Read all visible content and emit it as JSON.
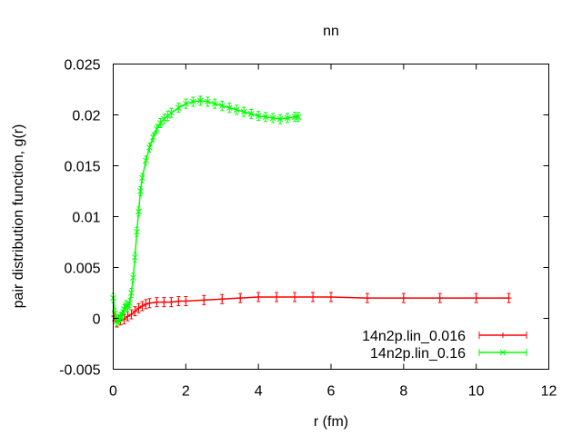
{
  "chart_data": {
    "type": "line",
    "title": "nn",
    "xlabel": "r (fm)",
    "ylabel": "pair distribution function, g(r)",
    "xlim": [
      0,
      12
    ],
    "ylim": [
      -0.005,
      0.025
    ],
    "xticks": [
      0,
      2,
      4,
      6,
      8,
      10,
      12
    ],
    "xtick_labels": [
      "0",
      "2",
      "4",
      "6",
      "8",
      "10",
      "12"
    ],
    "yticks": [
      -0.005,
      0,
      0.005,
      0.01,
      0.015,
      0.02,
      0.025
    ],
    "ytick_labels": [
      "-0.005",
      "0",
      "0.005",
      "0.01",
      "0.015",
      "0.02",
      "0.025"
    ],
    "grid": false,
    "legend_position": "bottom-right",
    "series": [
      {
        "name": "14n2p.lin_0.016",
        "color": "#ff0000",
        "marker": "plus",
        "error_bars": true,
        "x": [
          0.02,
          0.1,
          0.2,
          0.3,
          0.4,
          0.5,
          0.6,
          0.7,
          0.8,
          0.9,
          1.0,
          1.2,
          1.4,
          1.6,
          1.8,
          2.0,
          2.5,
          3.0,
          3.5,
          4.0,
          4.5,
          5.0,
          5.5,
          6.0,
          7.0,
          8.0,
          9.0,
          10.0,
          10.9
        ],
        "y": [
          0.0002,
          -0.0004,
          -0.0002,
          -0.0001,
          0.0002,
          0.0004,
          0.0007,
          0.001,
          0.0012,
          0.0014,
          0.0015,
          0.0016,
          0.0016,
          0.0016,
          0.0017,
          0.0017,
          0.0018,
          0.0019,
          0.002,
          0.0021,
          0.0021,
          0.0021,
          0.0021,
          0.0021,
          0.002,
          0.002,
          0.002,
          0.002,
          0.002
        ]
      },
      {
        "name": "14n2p.lin_0.16",
        "color": "#00ff00",
        "marker": "cross",
        "error_bars": true,
        "x": [
          0.0,
          0.05,
          0.1,
          0.15,
          0.2,
          0.25,
          0.3,
          0.35,
          0.4,
          0.45,
          0.5,
          0.55,
          0.6,
          0.65,
          0.7,
          0.75,
          0.8,
          0.9,
          1.0,
          1.1,
          1.2,
          1.3,
          1.4,
          1.5,
          1.6,
          1.8,
          2.0,
          2.2,
          2.4,
          2.6,
          2.8,
          3.0,
          3.2,
          3.4,
          3.6,
          3.8,
          4.0,
          4.2,
          4.4,
          4.6,
          4.8,
          5.0,
          5.1
        ],
        "y": [
          0.002,
          0.0005,
          -0.0003,
          -0.0001,
          0.0001,
          0.0004,
          0.0009,
          0.0013,
          0.0011,
          0.0015,
          0.0025,
          0.004,
          0.006,
          0.0085,
          0.0105,
          0.0125,
          0.0138,
          0.0155,
          0.0168,
          0.0178,
          0.0186,
          0.0192,
          0.0196,
          0.0199,
          0.0202,
          0.0207,
          0.0211,
          0.0213,
          0.0214,
          0.0213,
          0.0211,
          0.0209,
          0.0207,
          0.0205,
          0.0203,
          0.0201,
          0.0199,
          0.0198,
          0.0197,
          0.0196,
          0.0197,
          0.0198,
          0.0198
        ]
      }
    ]
  }
}
